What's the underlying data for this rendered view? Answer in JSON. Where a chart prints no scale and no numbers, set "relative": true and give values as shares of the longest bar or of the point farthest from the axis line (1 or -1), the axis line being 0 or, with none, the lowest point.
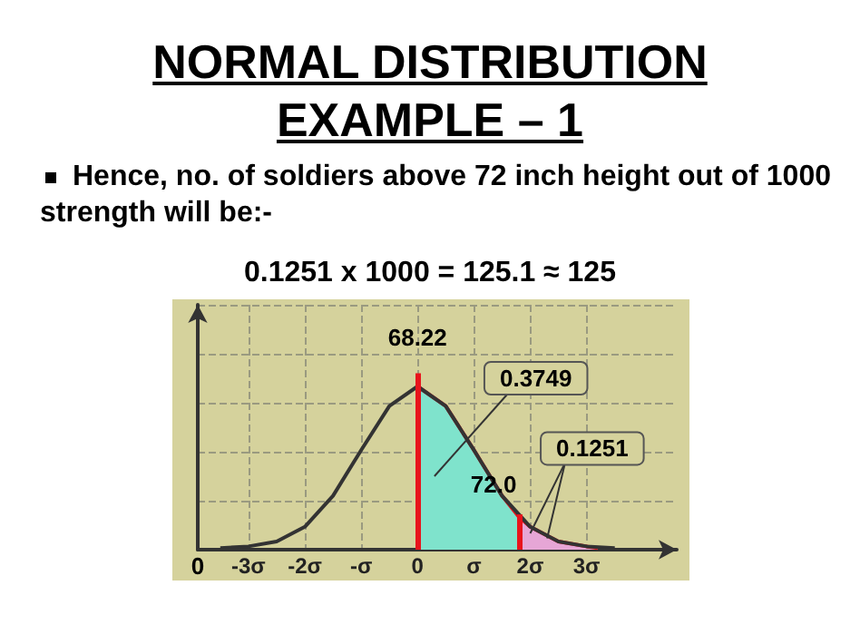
{
  "chart_data": {
    "type": "line",
    "title": "NORMAL DISTRIBUTION EXAMPLE – 1",
    "subtitle": "Hence, no. of soldiers above 72 inch height out of 1000 strength will be:-",
    "annotations": [
      "0.1251 x 1000 = 125.1 ≈ 125",
      "0",
      "68.22",
      "72.0",
      "0.3749",
      "0.1251"
    ],
    "relative": true,
    "grid": true,
    "marker": "none",
    "xlim": [
      -3.9,
      4.6
    ],
    "xticks": [
      {
        "value": -3,
        "label": "-3σ"
      },
      {
        "value": -2,
        "label": "-2σ"
      },
      {
        "value": -1,
        "label": "-σ"
      },
      0,
      {
        "value": 1,
        "label": "σ"
      },
      {
        "value": 2,
        "label": "2σ"
      },
      {
        "value": 3,
        "label": "3σ"
      }
    ],
    "series": [
      {
        "color": "#333333",
        "x": [
          -3.5,
          -3,
          -2.5,
          -2,
          -1.5,
          -1,
          -0.5,
          0,
          0.5,
          1,
          1.5,
          2,
          2.5,
          3,
          3.5
        ],
        "values": [
          0.01,
          0.02,
          0.05,
          0.14,
          0.33,
          0.61,
          0.88,
          1,
          0.88,
          0.61,
          0.33,
          0.14,
          0.05,
          0.02,
          0.01
        ]
      },
      {
        "type": "area",
        "color": "#7fe3cc",
        "x": [
          0,
          0.5,
          1,
          1.5,
          1.8
        ],
        "values": [
          1,
          0.88,
          0.61,
          0.33,
          0.2
        ]
      },
      {
        "type": "area",
        "color": "#e6a6d6",
        "x": [
          1.8,
          2,
          2.5,
          3,
          3.2
        ],
        "values": [
          0.2,
          0.14,
          0.05,
          0.02,
          0.01
        ]
      }
    ],
    "ref_lines": [
      {
        "axis": "x",
        "value": 0,
        "color": "#e8141c"
      },
      {
        "axis": "x",
        "value": 1.8,
        "color": "#e8141c"
      }
    ]
  }
}
